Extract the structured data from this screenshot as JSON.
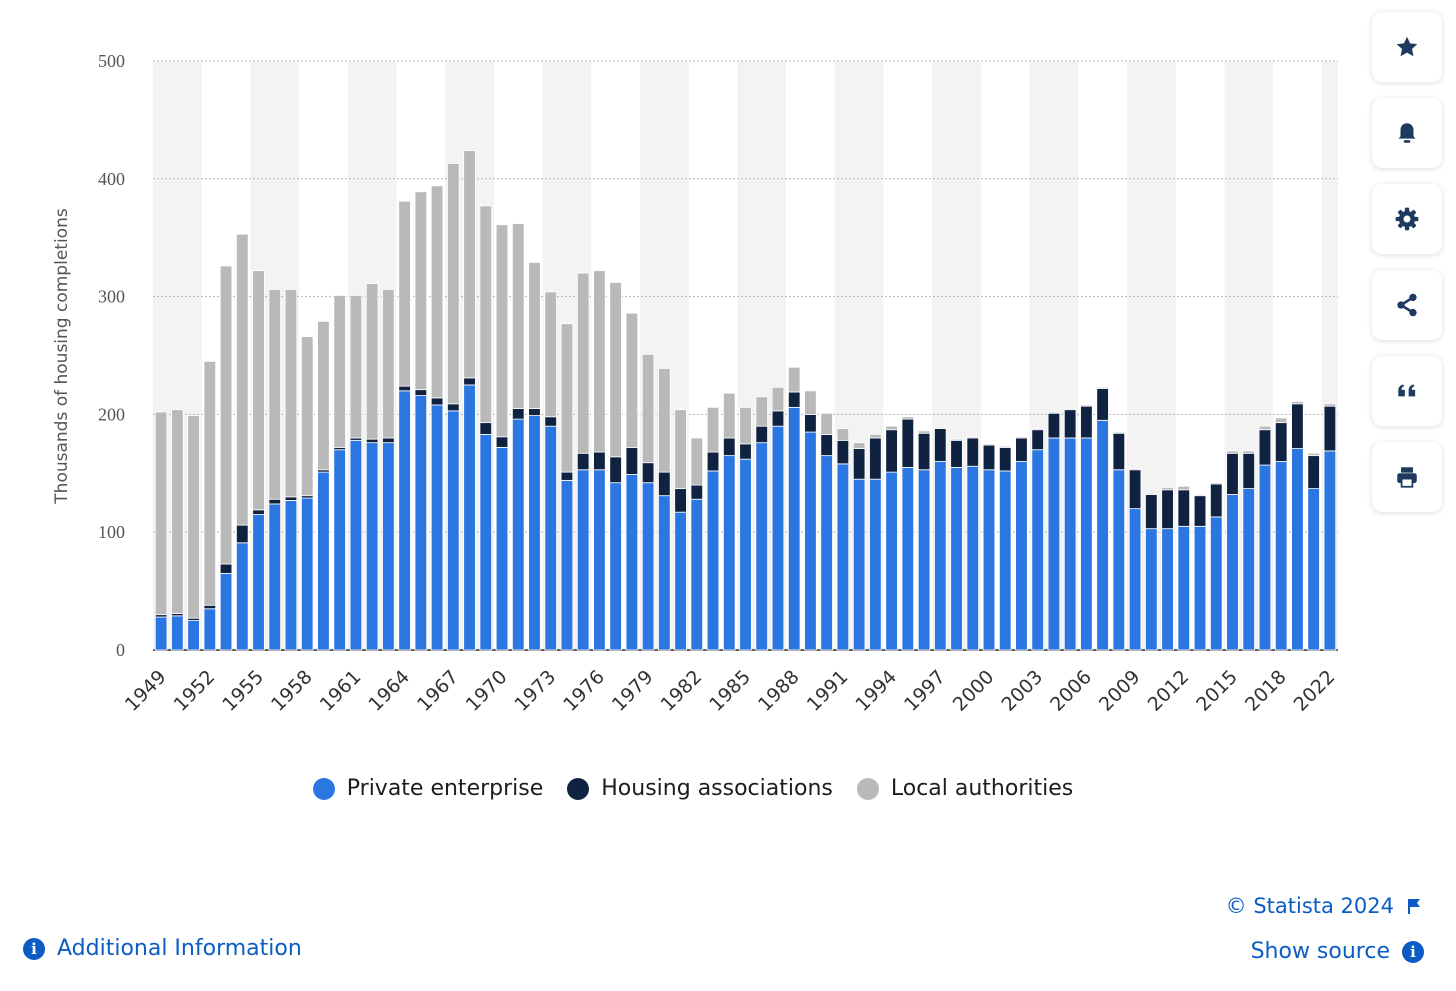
{
  "chart_data": {
    "type": "bar",
    "stacked": true,
    "title": "",
    "xlabel": "",
    "ylabel": "Thousands of housing completions",
    "ylim": [
      0,
      500
    ],
    "yticks": [
      0,
      100,
      200,
      300,
      400,
      500
    ],
    "x_tick_labels": [
      "1949",
      "1952",
      "1955",
      "1958",
      "1961",
      "1964",
      "1967",
      "1970",
      "1973",
      "1976",
      "1979",
      "1982",
      "1985",
      "1988",
      "1991",
      "1994",
      "1997",
      "2000",
      "2003",
      "2006",
      "2009",
      "2012",
      "2015",
      "2018",
      "2022"
    ],
    "grid": true,
    "legend_position": "bottom",
    "categories": [
      1949,
      1950,
      1951,
      1952,
      1953,
      1954,
      1955,
      1956,
      1957,
      1958,
      1959,
      1960,
      1961,
      1962,
      1963,
      1964,
      1965,
      1966,
      1967,
      1968,
      1969,
      1970,
      1971,
      1972,
      1973,
      1974,
      1975,
      1976,
      1977,
      1978,
      1979,
      1980,
      1981,
      1982,
      1983,
      1984,
      1985,
      1986,
      1987,
      1988,
      1989,
      1990,
      1991,
      1992,
      1993,
      1994,
      1995,
      1996,
      1997,
      1998,
      1999,
      2000,
      2001,
      2002,
      2003,
      2004,
      2005,
      2006,
      2007,
      2008,
      2009,
      2010,
      2011,
      2012,
      2013,
      2014,
      2015,
      2016,
      2017,
      2018,
      2019,
      2020,
      2022
    ],
    "series": [
      {
        "name": "Private enterprise",
        "color": "#2b76e0",
        "values": [
          28,
          29,
          25,
          35,
          65,
          91,
          115,
          124,
          127,
          129,
          151,
          170,
          178,
          176,
          176,
          220,
          216,
          208,
          203,
          225,
          183,
          172,
          196,
          199,
          190,
          144,
          153,
          153,
          142,
          149,
          142,
          131,
          117,
          128,
          152,
          165,
          162,
          176,
          190,
          206,
          185,
          165,
          158,
          145,
          145,
          151,
          155,
          153,
          160,
          155,
          156,
          153,
          152,
          160,
          170,
          180,
          180,
          180,
          195,
          153,
          120,
          103,
          103,
          105,
          105,
          113,
          132,
          137,
          157,
          160,
          171,
          137,
          169
        ]
      },
      {
        "name": "Housing associations",
        "color": "#0f2240",
        "values": [
          2,
          2,
          2,
          3,
          8,
          15,
          4,
          4,
          3,
          2,
          2,
          2,
          2,
          3,
          4,
          4,
          5,
          6,
          6,
          6,
          10,
          9,
          9,
          6,
          8,
          7,
          14,
          15,
          22,
          23,
          17,
          20,
          20,
          12,
          16,
          15,
          13,
          14,
          13,
          13,
          15,
          18,
          20,
          26,
          35,
          36,
          41,
          31,
          28,
          23,
          24,
          21,
          20,
          20,
          17,
          21,
          24,
          27,
          27,
          31,
          33,
          29,
          33,
          31,
          26,
          28,
          35,
          30,
          30,
          33,
          38,
          28,
          38
        ]
      },
      {
        "name": "Local authorities",
        "color": "#b9b9b9",
        "values": [
          172,
          173,
          172,
          207,
          253,
          247,
          203,
          178,
          176,
          135,
          126,
          129,
          121,
          132,
          126,
          157,
          168,
          180,
          204,
          193,
          184,
          180,
          157,
          124,
          106,
          126,
          153,
          154,
          148,
          114,
          92,
          88,
          67,
          40,
          38,
          38,
          31,
          25,
          20,
          21,
          20,
          18,
          10,
          5,
          3,
          3,
          2,
          2,
          1,
          1,
          1,
          1,
          1,
          1,
          1,
          1,
          1,
          1,
          1,
          1,
          1,
          1,
          2,
          3,
          1,
          1,
          2,
          2,
          3,
          4,
          2,
          2,
          2
        ]
      }
    ]
  },
  "toolbar": [
    "star-icon",
    "bell-icon",
    "gear-icon",
    "share-icon",
    "quote-icon",
    "print-icon"
  ],
  "footer": {
    "credit": "© Statista 2024",
    "show_source": "Show source",
    "additional_info": "Additional Information"
  }
}
